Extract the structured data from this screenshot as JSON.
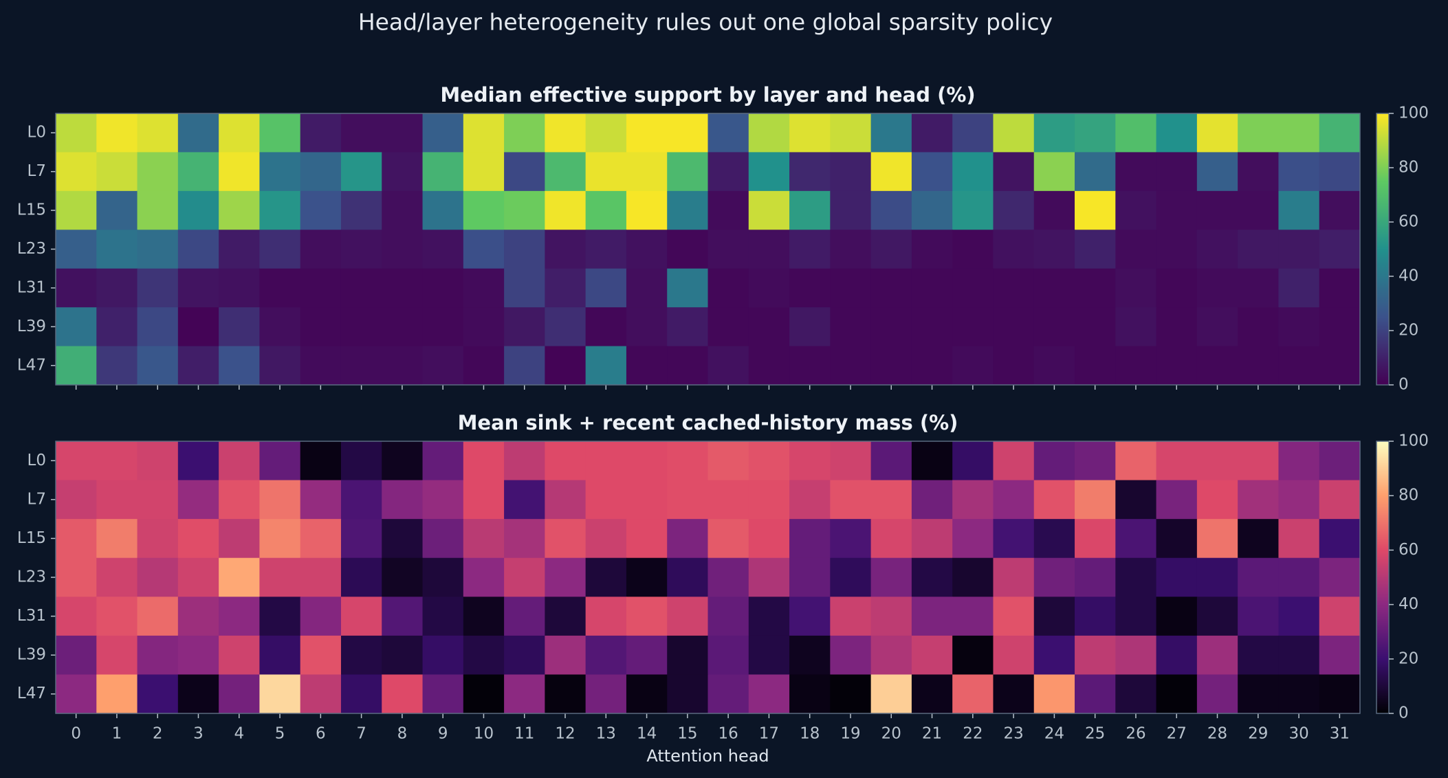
{
  "title": "Head/layer heterogeneity rules out one global sparsity policy",
  "chart_data": [
    {
      "type": "heatmap",
      "title": "Median effective support by layer and head (%)",
      "colormap": "viridis",
      "rows": [
        "L0",
        "L7",
        "L15",
        "L23",
        "L31",
        "L39",
        "L47"
      ],
      "clim": [
        0,
        100
      ],
      "cticks": [
        0,
        20,
        40,
        60,
        80,
        100
      ],
      "values": [
        [
          90,
          98,
          95,
          35,
          95,
          72,
          8,
          4,
          4,
          30,
          95,
          80,
          98,
          92,
          99,
          99,
          27,
          88,
          95,
          92,
          40,
          8,
          20,
          90,
          55,
          58,
          70,
          50,
          96,
          80,
          80,
          65
        ],
        [
          95,
          92,
          82,
          65,
          98,
          38,
          33,
          52,
          6,
          65,
          95,
          22,
          68,
          97,
          97,
          68,
          8,
          50,
          12,
          10,
          98,
          25,
          50,
          6,
          82,
          35,
          3,
          3,
          30,
          4,
          24,
          22
        ],
        [
          88,
          32,
          82,
          48,
          85,
          52,
          25,
          15,
          4,
          38,
          75,
          77,
          98,
          73,
          99,
          42,
          3,
          92,
          55,
          10,
          23,
          33,
          52,
          12,
          3,
          99,
          5,
          3,
          3,
          3,
          42,
          4
        ],
        [
          30,
          38,
          36,
          22,
          8,
          14,
          4,
          5,
          4,
          5,
          24,
          20,
          6,
          8,
          5,
          2,
          4,
          4,
          8,
          4,
          7,
          3,
          2,
          5,
          6,
          10,
          3,
          3,
          5,
          7,
          7,
          9
        ],
        [
          5,
          7,
          16,
          6,
          5,
          2,
          2,
          2,
          2,
          2,
          3,
          20,
          9,
          22,
          4,
          40,
          2,
          3,
          2,
          2,
          2,
          2,
          2,
          2,
          2,
          2,
          4,
          2,
          3,
          3,
          10,
          2
        ],
        [
          38,
          10,
          22,
          1,
          14,
          4,
          2,
          2,
          2,
          2,
          3,
          7,
          14,
          2,
          4,
          8,
          2,
          2,
          7,
          2,
          2,
          2,
          2,
          2,
          2,
          2,
          5,
          2,
          4,
          2,
          3,
          2
        ],
        [
          63,
          17,
          27,
          9,
          25,
          7,
          3,
          3,
          3,
          4,
          2,
          20,
          1,
          42,
          2,
          2,
          5,
          2,
          2,
          2,
          2,
          2,
          3,
          2,
          3,
          2,
          2,
          2,
          2,
          2,
          2,
          2
        ]
      ]
    },
    {
      "type": "heatmap",
      "title": "Mean sink + recent cached-history mass (%)",
      "colormap": "magma",
      "xlabel": "Attention head",
      "categories": [
        "0",
        "1",
        "2",
        "3",
        "4",
        "5",
        "6",
        "7",
        "8",
        "9",
        "10",
        "11",
        "12",
        "13",
        "14",
        "15",
        "16",
        "17",
        "18",
        "19",
        "20",
        "21",
        "22",
        "23",
        "24",
        "25",
        "26",
        "27",
        "28",
        "29",
        "30",
        "31"
      ],
      "rows": [
        "L0",
        "L7",
        "L15",
        "L23",
        "L31",
        "L39",
        "L47"
      ],
      "clim": [
        0,
        100
      ],
      "cticks": [
        0,
        20,
        40,
        60,
        80,
        100
      ],
      "values": [
        [
          58,
          58,
          56,
          20,
          55,
          30,
          3,
          12,
          5,
          30,
          60,
          52,
          60,
          60,
          60,
          61,
          64,
          62,
          58,
          56,
          28,
          3,
          18,
          56,
          30,
          33,
          66,
          58,
          58,
          58,
          38,
          32
        ],
        [
          54,
          57,
          57,
          42,
          62,
          70,
          42,
          24,
          38,
          42,
          60,
          22,
          50,
          60,
          60,
          61,
          61,
          61,
          54,
          62,
          62,
          33,
          46,
          40,
          62,
          72,
          8,
          35,
          60,
          45,
          42,
          55
        ],
        [
          64,
          72,
          56,
          61,
          52,
          74,
          66,
          25,
          10,
          32,
          51,
          46,
          62,
          55,
          60,
          36,
          64,
          60,
          30,
          24,
          58,
          52,
          40,
          22,
          14,
          59,
          24,
          7,
          70,
          5,
          55,
          20
        ],
        [
          64,
          56,
          50,
          56,
          82,
          56,
          56,
          15,
          6,
          10,
          40,
          54,
          40,
          10,
          4,
          16,
          33,
          48,
          30,
          16,
          35,
          12,
          8,
          52,
          33,
          30,
          12,
          18,
          18,
          28,
          28,
          36
        ],
        [
          58,
          62,
          68,
          44,
          40,
          12,
          38,
          58,
          26,
          12,
          5,
          30,
          10,
          58,
          62,
          56,
          30,
          12,
          22,
          55,
          52,
          36,
          36,
          62,
          10,
          18,
          12,
          3,
          10,
          24,
          20,
          56
        ],
        [
          32,
          58,
          38,
          40,
          56,
          18,
          62,
          12,
          10,
          18,
          12,
          16,
          44,
          26,
          30,
          8,
          28,
          12,
          5,
          36,
          48,
          54,
          2,
          56,
          20,
          52,
          48,
          18,
          44,
          12,
          12,
          36
        ],
        [
          40,
          80,
          20,
          4,
          34,
          92,
          52,
          18,
          60,
          30,
          1,
          40,
          2,
          34,
          3,
          8,
          30,
          40,
          3,
          1,
          90,
          4,
          66,
          4,
          78,
          28,
          10,
          1,
          34,
          4,
          4,
          3
        ]
      ]
    }
  ]
}
